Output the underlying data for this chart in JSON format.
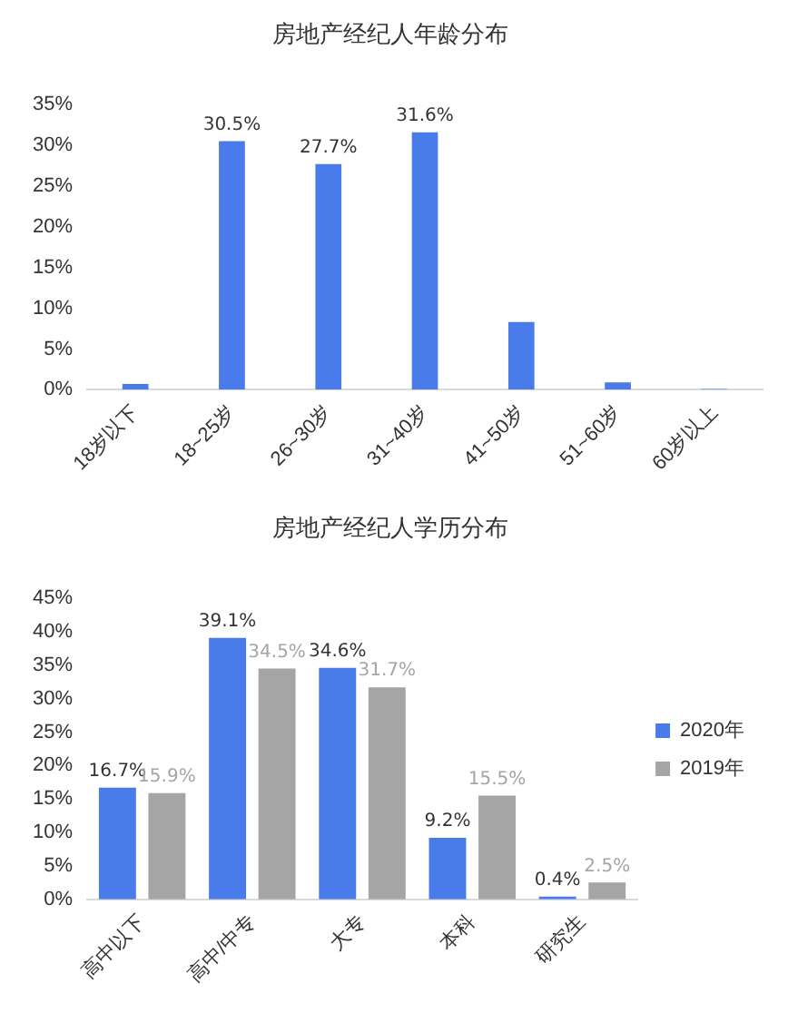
{
  "chart_data": [
    {
      "type": "bar",
      "title": "房地产经纪人年龄分布",
      "categories": [
        "18岁以下",
        "18~25岁",
        "26~30岁",
        "31~40岁",
        "41~50岁",
        "51~60岁",
        "60岁以上"
      ],
      "series": [
        {
          "color": "#4a7bea",
          "values": [
            0.7,
            30.5,
            27.7,
            31.6,
            8.3,
            0.9,
            0.1
          ],
          "value_labels": [
            null,
            "30.5%",
            "27.7%",
            "31.6%",
            null,
            null,
            null
          ]
        }
      ],
      "ylim": [
        0,
        35
      ],
      "yticks": [
        {
          "value": 0,
          "label": "0%"
        },
        {
          "value": 5,
          "label": "5%"
        },
        {
          "value": 10,
          "label": "10%"
        },
        {
          "value": 15,
          "label": "15%"
        },
        {
          "value": 20,
          "label": "20%"
        },
        {
          "value": 25,
          "label": "25%"
        },
        {
          "value": 30,
          "label": "30%"
        },
        {
          "value": 35,
          "label": "35%"
        }
      ],
      "grid": false,
      "legend": false
    },
    {
      "type": "bar",
      "title": "房地产经纪人学历分布",
      "categories": [
        "高中以下",
        "高中/中专",
        "大专",
        "本科",
        "研究生"
      ],
      "series": [
        {
          "name": "2020年",
          "color": "#4a7bea",
          "values": [
            16.7,
            39.1,
            34.6,
            9.2,
            0.4
          ],
          "value_labels": [
            "16.7%",
            "39.1%",
            "34.6%",
            "9.2%",
            "0.4%"
          ]
        },
        {
          "name": "2019年",
          "color": "#a5a5a5",
          "values": [
            15.9,
            34.5,
            31.7,
            15.5,
            2.5
          ],
          "value_labels": [
            "15.9%",
            "34.5%",
            "31.7%",
            "15.5%",
            "2.5%"
          ]
        }
      ],
      "ylim": [
        0,
        45
      ],
      "yticks": [
        {
          "value": 0,
          "label": "0%"
        },
        {
          "value": 5,
          "label": "5%"
        },
        {
          "value": 10,
          "label": "10%"
        },
        {
          "value": 15,
          "label": "15%"
        },
        {
          "value": 20,
          "label": "20%"
        },
        {
          "value": 25,
          "label": "25%"
        },
        {
          "value": 30,
          "label": "30%"
        },
        {
          "value": 35,
          "label": "35%"
        },
        {
          "value": 40,
          "label": "40%"
        },
        {
          "value": 45,
          "label": "45%"
        }
      ],
      "grid": false,
      "legend": "right"
    }
  ]
}
